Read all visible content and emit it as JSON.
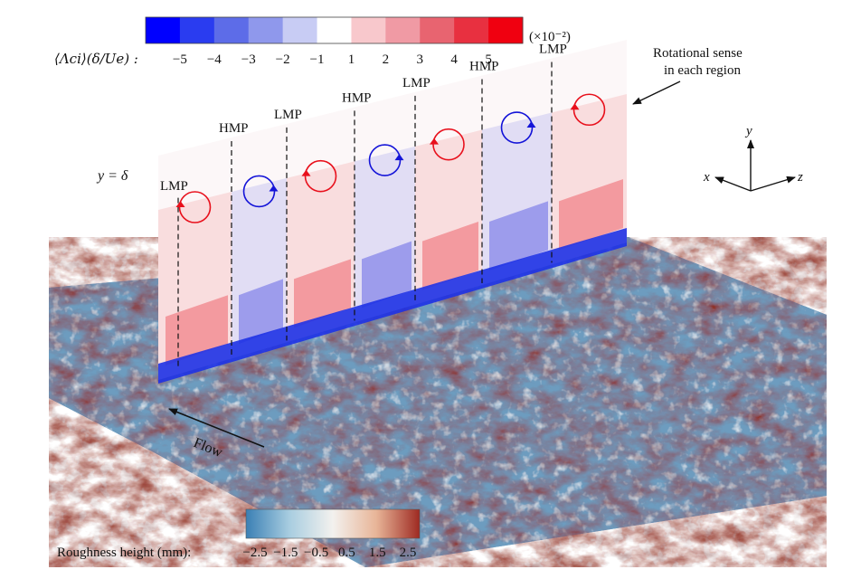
{
  "vorticity_colorbar": {
    "label": "⟨Λci⟩(δ/Ue) :",
    "multiplier": "(×10⁻²)",
    "ticks": [
      "−5",
      "−4",
      "−3",
      "−2",
      "−1",
      "1",
      "2",
      "3",
      "4",
      "5"
    ],
    "colors": [
      "#0000ff",
      "#2a3cf0",
      "#5d6ce8",
      "#8f98ec",
      "#c8ccf4",
      "#ffffff",
      "#f8c8cc",
      "#f09aa4",
      "#e86470",
      "#e83040",
      "#f00010"
    ]
  },
  "roughness_colorbar": {
    "label": "Roughness height (mm):",
    "ticks": [
      "−2.5",
      "−1.5",
      "−0.5",
      "0.5",
      "1.5",
      "2.5"
    ],
    "colors": [
      "#3a7fb4",
      "#a8cde0",
      "#f3f1ee",
      "#e8b598",
      "#9e2a22"
    ]
  },
  "plane": {
    "height_label": "y = δ",
    "regions": [
      {
        "label": "LMP",
        "sense": "ccw",
        "color": "#e8101c"
      },
      {
        "label": "HMP",
        "sense": "cw",
        "color": "#1414d8"
      },
      {
        "label": "LMP",
        "sense": "ccw",
        "color": "#e8101c"
      },
      {
        "label": "HMP",
        "sense": "cw",
        "color": "#1414d8"
      },
      {
        "label": "LMP",
        "sense": "ccw",
        "color": "#e8101c"
      },
      {
        "label": "HMP",
        "sense": "cw",
        "color": "#1414d8"
      },
      {
        "label": "LMP",
        "sense": "ccw",
        "color": "#e8101c"
      }
    ]
  },
  "annotations": {
    "rotational_sense_line1": "Rotational sense",
    "rotational_sense_line2": "in each region",
    "flow": "Flow"
  },
  "axes_triad": {
    "x": "x",
    "y": "y",
    "z": "z"
  }
}
